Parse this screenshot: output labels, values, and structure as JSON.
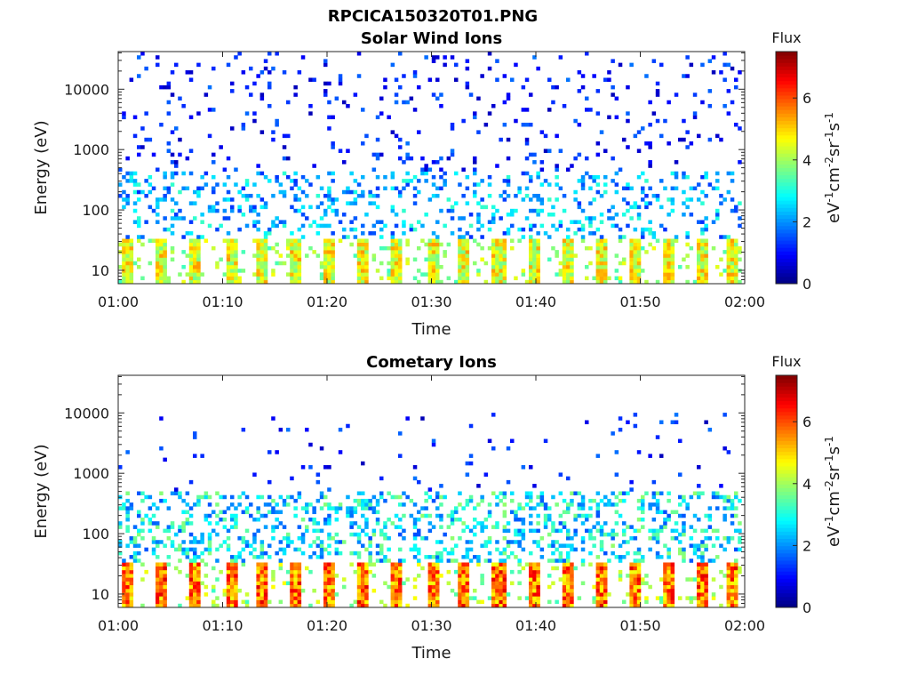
{
  "figure": {
    "title": "RPCICA150320T01.PNG"
  },
  "chart_data": [
    {
      "type": "heatmap",
      "title": "Solar Wind Ions",
      "xlabel": "Time",
      "ylabel": "Energy (eV)",
      "x_ticks": [
        "01:00",
        "01:10",
        "01:20",
        "01:30",
        "01:40",
        "01:50",
        "02:00"
      ],
      "x_range_minutes": [
        0,
        60
      ],
      "y_scale": "log",
      "y_range": [
        6,
        42000
      ],
      "y_ticks": [
        {
          "value": 10,
          "label": "10"
        },
        {
          "value": 100,
          "label": "100"
        },
        {
          "value": 1000,
          "label": "1000"
        },
        {
          "value": 10000,
          "label": "10000"
        }
      ],
      "colorbar": {
        "title": "Flux",
        "label": "eV-1cm-2sr-1s-1",
        "label_parts": [
          [
            "eV",
            ""
          ],
          [
            "-1",
            "sup"
          ],
          [
            "cm",
            ""
          ],
          [
            "-2",
            "sup"
          ],
          [
            "sr",
            ""
          ],
          [
            "-1",
            "sup"
          ],
          [
            "s",
            ""
          ],
          [
            "-1",
            "sup"
          ]
        ],
        "range": [
          0,
          7.5
        ],
        "ticks": [
          0,
          2,
          4,
          6
        ],
        "colormap": "jet"
      },
      "low_energy_bursts": {
        "start_minutes": [
          0.2,
          3.7,
          6.9,
          10.3,
          13.2,
          16.5,
          19.8,
          23.0,
          26.2,
          29.5,
          32.6,
          35.9,
          39.3,
          42.4,
          45.7,
          48.9,
          52.1,
          55.4,
          58.2
        ],
        "peak_flux": 5.2,
        "energy_range": [
          6,
          30
        ]
      },
      "mid_energy_band": {
        "energy_range": [
          40,
          400
        ],
        "typical_flux": 2.5
      },
      "high_energy_scatter": {
        "energy_range": [
          400,
          40000
        ],
        "typical_flux": 1.0
      }
    },
    {
      "type": "heatmap",
      "title": "Cometary Ions",
      "xlabel": "Time",
      "ylabel": "Energy (eV)",
      "x_ticks": [
        "01:00",
        "01:10",
        "01:20",
        "01:30",
        "01:40",
        "01:50",
        "02:00"
      ],
      "x_range_minutes": [
        0,
        60
      ],
      "y_scale": "log",
      "y_range": [
        6,
        42000
      ],
      "y_ticks": [
        {
          "value": 10,
          "label": "10"
        },
        {
          "value": 100,
          "label": "100"
        },
        {
          "value": 1000,
          "label": "1000"
        },
        {
          "value": 10000,
          "label": "10000"
        }
      ],
      "colorbar": {
        "title": "Flux",
        "label": "eV-1cm-2sr-1s-1",
        "label_parts": [
          [
            "eV",
            ""
          ],
          [
            "-1",
            "sup"
          ],
          [
            "cm",
            ""
          ],
          [
            "-2",
            "sup"
          ],
          [
            "sr",
            ""
          ],
          [
            "-1",
            "sup"
          ],
          [
            "s",
            ""
          ],
          [
            "-1",
            "sup"
          ]
        ],
        "range": [
          0,
          7.5
        ],
        "ticks": [
          0,
          2,
          4,
          6
        ],
        "colormap": "jet"
      },
      "low_energy_bursts": {
        "start_minutes": [
          0.2,
          3.7,
          6.9,
          10.3,
          13.2,
          16.5,
          19.8,
          23.0,
          26.2,
          29.5,
          32.6,
          35.9,
          39.3,
          42.4,
          45.7,
          48.9,
          52.1,
          55.4,
          58.2
        ],
        "peak_flux": 6.5,
        "energy_range": [
          6,
          30
        ]
      },
      "mid_energy_band": {
        "energy_range": [
          30,
          500
        ],
        "typical_flux": 3.0
      },
      "high_energy_scatter": {
        "energy_range": [
          500,
          10000
        ],
        "typical_flux": 1.0
      }
    }
  ]
}
